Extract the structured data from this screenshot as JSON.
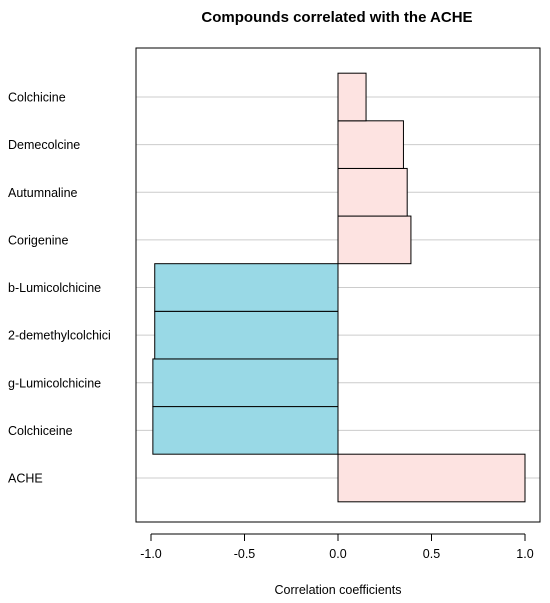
{
  "chart_data": {
    "type": "bar",
    "orientation": "horizontal",
    "title": "Compounds correlated with the ACHE",
    "xlabel": "Correlation coefficients",
    "ylabel": "",
    "categories": [
      "ACHE",
      "Colchiceine",
      "g-Lumicolchicine",
      "2-demethylcolchici",
      "b-Lumicolchicine",
      "Corigenine",
      "Autumnaline",
      "Demecolcine",
      "Colchicine"
    ],
    "values": [
      1.0,
      -0.99,
      -0.99,
      -0.98,
      -0.98,
      0.39,
      0.37,
      0.35,
      0.15
    ],
    "xlim": [
      -1.0,
      1.0
    ],
    "xticks": [
      -1.0,
      -0.5,
      0.0,
      0.5,
      1.0
    ],
    "xtick_labels": [
      "-1.0",
      "-0.5",
      "0.0",
      "0.5",
      "1.0"
    ],
    "grid": true,
    "legend": "none",
    "colors": {
      "positive": "#fde3e1",
      "negative": "#99d9e6",
      "bar_stroke": "#000000",
      "grid": "#cccccc"
    }
  }
}
